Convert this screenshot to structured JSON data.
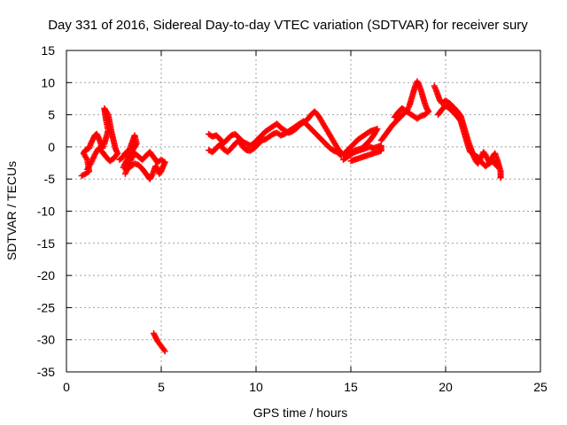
{
  "chart_data": {
    "type": "scatter",
    "title": "Day 331 of 2016, Sidereal Day-to-day VTEC variation (SDTVAR) for receiver sury",
    "xlabel": "GPS time / hours",
    "ylabel": "SDTVAR / TECUs",
    "xlim": [
      0,
      25
    ],
    "ylim": [
      -35,
      15
    ],
    "xticks": [
      0,
      5,
      10,
      15,
      20,
      25
    ],
    "yticks": [
      15,
      10,
      5,
      0,
      -5,
      -10,
      -15,
      -20,
      -25,
      -30,
      -35
    ],
    "grid": true,
    "marker": "plus",
    "series": [
      {
        "name": "SDTVAR",
        "color": "#ff0000",
        "segments": [
          [
            [
              0.8,
              -4.5
            ],
            [
              1.0,
              -4.2
            ],
            [
              1.2,
              -3.8
            ],
            [
              1.1,
              -2.0
            ],
            [
              0.9,
              -1.0
            ],
            [
              1.0,
              -0.5
            ],
            [
              1.2,
              -0.2
            ],
            [
              1.3,
              0.6
            ],
            [
              1.4,
              1.2
            ],
            [
              1.5,
              1.8
            ],
            [
              1.6,
              2.0
            ],
            [
              1.7,
              1.4
            ],
            [
              1.8,
              0.6
            ],
            [
              1.9,
              -0.2
            ],
            [
              2.0,
              0.5
            ],
            [
              2.1,
              1.5
            ],
            [
              2.2,
              2.6
            ],
            [
              2.1,
              4.0
            ],
            [
              2.05,
              5.0
            ],
            [
              2.0,
              6.0
            ],
            [
              2.2,
              5.0
            ],
            [
              2.3,
              3.5
            ],
            [
              2.4,
              2.0
            ],
            [
              2.5,
              0.8
            ],
            [
              2.6,
              -0.4
            ],
            [
              2.7,
              -1.0
            ],
            [
              2.5,
              -1.8
            ],
            [
              2.3,
              -2.2
            ],
            [
              2.1,
              -1.6
            ],
            [
              1.9,
              -0.8
            ],
            [
              1.7,
              -0.2
            ],
            [
              1.5,
              -1.2
            ],
            [
              1.3,
              -2.5
            ],
            [
              1.1,
              -3.5
            ]
          ],
          [
            [
              2.8,
              -2.0
            ],
            [
              3.0,
              -1.5
            ],
            [
              3.1,
              -1.0
            ],
            [
              3.3,
              -0.5
            ],
            [
              3.4,
              0.2
            ],
            [
              3.5,
              1.0
            ],
            [
              3.6,
              1.8
            ],
            [
              3.7,
              0.5
            ],
            [
              3.5,
              -0.5
            ],
            [
              3.3,
              -1.5
            ],
            [
              3.1,
              -2.5
            ],
            [
              3.0,
              -3.2
            ],
            [
              3.2,
              -3.5
            ],
            [
              3.4,
              -3.0
            ],
            [
              3.6,
              -2.6
            ],
            [
              3.8,
              -2.8
            ],
            [
              4.0,
              -3.4
            ],
            [
              4.2,
              -4.2
            ],
            [
              4.4,
              -5.0
            ],
            [
              4.5,
              -4.5
            ],
            [
              4.6,
              -3.8
            ],
            [
              4.7,
              -3.0
            ],
            [
              4.8,
              -3.5
            ],
            [
              4.9,
              -4.2
            ],
            [
              5.0,
              -3.8
            ],
            [
              5.1,
              -3.0
            ],
            [
              5.2,
              -2.4
            ],
            [
              5.0,
              -2.0
            ],
            [
              4.8,
              -2.4
            ],
            [
              4.6,
              -1.6
            ],
            [
              4.4,
              -0.8
            ],
            [
              4.2,
              -1.4
            ],
            [
              4.0,
              -2.0
            ],
            [
              3.8,
              -1.5
            ],
            [
              3.6,
              -1.0
            ],
            [
              3.4,
              -2.0
            ],
            [
              3.2,
              -3.5
            ],
            [
              3.1,
              -4.2
            ]
          ],
          [
            [
              4.6,
              -29.0
            ],
            [
              4.7,
              -29.6
            ],
            [
              4.8,
              -30.2
            ],
            [
              4.9,
              -30.6
            ],
            [
              5.0,
              -31.0
            ],
            [
              5.1,
              -31.4
            ],
            [
              5.2,
              -31.8
            ]
          ],
          [
            [
              7.5,
              2.0
            ],
            [
              7.7,
              1.6
            ],
            [
              7.9,
              1.8
            ],
            [
              8.1,
              1.2
            ],
            [
              8.3,
              0.6
            ],
            [
              8.5,
              1.2
            ],
            [
              8.7,
              1.8
            ],
            [
              8.9,
              2.0
            ],
            [
              9.1,
              1.4
            ],
            [
              9.3,
              0.8
            ],
            [
              9.5,
              0.5
            ],
            [
              9.7,
              0.2
            ],
            [
              9.9,
              0.6
            ],
            [
              10.1,
              1.2
            ],
            [
              10.3,
              1.8
            ],
            [
              10.5,
              2.4
            ],
            [
              10.7,
              2.8
            ],
            [
              10.9,
              3.2
            ],
            [
              11.1,
              3.6
            ],
            [
              11.3,
              3.0
            ],
            [
              11.5,
              2.6
            ],
            [
              11.7,
              2.2
            ],
            [
              11.9,
              2.4
            ],
            [
              12.1,
              2.8
            ],
            [
              12.3,
              3.4
            ],
            [
              12.5,
              3.8
            ],
            [
              12.7,
              4.2
            ],
            [
              12.9,
              5.0
            ],
            [
              13.1,
              5.5
            ],
            [
              13.3,
              4.8
            ],
            [
              13.5,
              3.8
            ],
            [
              13.7,
              2.8
            ],
            [
              13.9,
              1.8
            ],
            [
              14.1,
              0.8
            ],
            [
              14.3,
              -0.2
            ],
            [
              14.5,
              -1.0
            ]
          ],
          [
            [
              7.5,
              -0.5
            ],
            [
              7.7,
              -0.8
            ],
            [
              7.9,
              -0.2
            ],
            [
              8.1,
              0.4
            ],
            [
              8.3,
              -0.4
            ],
            [
              8.5,
              -0.8
            ],
            [
              8.7,
              -0.2
            ],
            [
              8.9,
              0.5
            ],
            [
              9.1,
              1.0
            ],
            [
              9.3,
              0.0
            ],
            [
              9.5,
              -0.5
            ],
            [
              9.7,
              -0.6
            ],
            [
              9.9,
              -0.2
            ],
            [
              10.1,
              0.4
            ],
            [
              10.3,
              1.0
            ],
            [
              10.5,
              1.2
            ],
            [
              10.7,
              1.6
            ],
            [
              10.9,
              2.0
            ],
            [
              11.1,
              2.2
            ],
            [
              11.3,
              1.8
            ],
            [
              11.5,
              2.0
            ],
            [
              11.7,
              2.4
            ],
            [
              11.9,
              2.8
            ],
            [
              12.1,
              3.2
            ],
            [
              12.3,
              3.6
            ],
            [
              12.5,
              4.0
            ],
            [
              12.7,
              3.4
            ],
            [
              12.9,
              2.8
            ],
            [
              13.1,
              2.2
            ],
            [
              13.3,
              1.6
            ],
            [
              13.5,
              1.0
            ],
            [
              13.7,
              0.4
            ],
            [
              13.9,
              -0.2
            ],
            [
              14.1,
              -0.6
            ],
            [
              14.3,
              -0.8
            ],
            [
              14.5,
              -1.4
            ]
          ],
          [
            [
              14.6,
              -1.2
            ],
            [
              14.8,
              -0.6
            ],
            [
              15.0,
              0.0
            ],
            [
              15.2,
              0.6
            ],
            [
              15.4,
              1.2
            ],
            [
              15.6,
              1.6
            ],
            [
              15.8,
              2.0
            ],
            [
              16.0,
              2.4
            ],
            [
              16.2,
              2.6
            ],
            [
              16.4,
              2.8
            ],
            [
              16.2,
              1.8
            ],
            [
              16.0,
              1.0
            ],
            [
              15.8,
              0.4
            ],
            [
              15.6,
              -0.2
            ],
            [
              15.4,
              -0.4
            ],
            [
              15.2,
              -0.6
            ],
            [
              15.0,
              -0.8
            ],
            [
              14.8,
              -1.0
            ]
          ],
          [
            [
              14.6,
              -2.0
            ],
            [
              14.8,
              -1.6
            ],
            [
              15.0,
              -1.2
            ],
            [
              15.2,
              -0.8
            ],
            [
              15.4,
              -0.6
            ],
            [
              15.6,
              -0.4
            ],
            [
              15.8,
              -0.2
            ],
            [
              16.0,
              0.0
            ],
            [
              16.2,
              -0.2
            ],
            [
              16.4,
              0.0
            ],
            [
              16.6,
              0.2
            ],
            [
              16.6,
              -0.6
            ],
            [
              16.4,
              -0.8
            ],
            [
              16.2,
              -1.0
            ],
            [
              16.0,
              -1.2
            ],
            [
              15.8,
              -1.4
            ],
            [
              15.6,
              -1.6
            ],
            [
              15.4,
              -1.8
            ],
            [
              15.2,
              -2.0
            ],
            [
              15.0,
              -2.2
            ]
          ],
          [
            [
              16.6,
              1.0
            ],
            [
              16.8,
              1.8
            ],
            [
              17.0,
              2.6
            ],
            [
              17.2,
              3.4
            ],
            [
              17.4,
              4.0
            ],
            [
              17.6,
              4.6
            ],
            [
              17.8,
              5.2
            ],
            [
              18.0,
              5.8
            ],
            [
              18.1,
              6.5
            ],
            [
              18.2,
              7.5
            ],
            [
              18.3,
              8.5
            ],
            [
              18.4,
              9.5
            ],
            [
              18.5,
              10.2
            ],
            [
              18.6,
              9.6
            ],
            [
              18.7,
              8.8
            ],
            [
              18.8,
              7.8
            ],
            [
              18.9,
              6.8
            ],
            [
              19.0,
              6.0
            ],
            [
              19.1,
              5.5
            ],
            [
              18.9,
              5.0
            ],
            [
              18.7,
              4.8
            ],
            [
              18.5,
              4.4
            ],
            [
              18.3,
              4.8
            ],
            [
              18.1,
              5.2
            ],
            [
              17.9,
              5.6
            ],
            [
              17.7,
              6.0
            ],
            [
              17.5,
              5.4
            ],
            [
              17.3,
              4.6
            ]
          ],
          [
            [
              19.4,
              9.5
            ],
            [
              19.5,
              8.8
            ],
            [
              19.6,
              8.0
            ],
            [
              19.7,
              7.2
            ],
            [
              19.8,
              6.8
            ],
            [
              20.0,
              7.2
            ],
            [
              20.2,
              6.8
            ],
            [
              20.4,
              6.2
            ],
            [
              20.6,
              5.6
            ],
            [
              20.8,
              4.8
            ],
            [
              20.9,
              3.8
            ],
            [
              21.0,
              2.8
            ],
            [
              21.1,
              1.8
            ],
            [
              21.2,
              0.8
            ],
            [
              21.3,
              0.0
            ],
            [
              21.4,
              -0.8
            ],
            [
              21.5,
              -1.6
            ],
            [
              21.6,
              -2.2
            ],
            [
              21.7,
              -2.6
            ],
            [
              21.8,
              -2.0
            ],
            [
              21.9,
              -1.4
            ],
            [
              22.0,
              -0.8
            ],
            [
              22.1,
              -1.2
            ],
            [
              22.2,
              -1.8
            ],
            [
              22.3,
              -2.4
            ],
            [
              22.4,
              -2.0
            ],
            [
              22.5,
              -1.4
            ],
            [
              22.6,
              -1.0
            ],
            [
              22.7,
              -1.8
            ],
            [
              22.8,
              -2.8
            ],
            [
              22.9,
              -3.8
            ],
            [
              22.9,
              -4.8
            ]
          ],
          [
            [
              19.6,
              5.0
            ],
            [
              19.8,
              5.8
            ],
            [
              20.0,
              6.4
            ],
            [
              20.2,
              6.0
            ],
            [
              20.4,
              5.4
            ],
            [
              20.6,
              4.8
            ],
            [
              20.8,
              4.0
            ],
            [
              20.9,
              3.0
            ],
            [
              21.0,
              2.0
            ],
            [
              21.1,
              1.0
            ],
            [
              21.2,
              0.0
            ],
            [
              21.3,
              -0.8
            ],
            [
              21.5,
              -1.2
            ],
            [
              21.7,
              -1.6
            ],
            [
              21.9,
              -2.4
            ],
            [
              22.1,
              -3.0
            ],
            [
              22.3,
              -2.6
            ],
            [
              22.5,
              -2.2
            ],
            [
              22.7,
              -3.0
            ]
          ]
        ]
      }
    ]
  }
}
